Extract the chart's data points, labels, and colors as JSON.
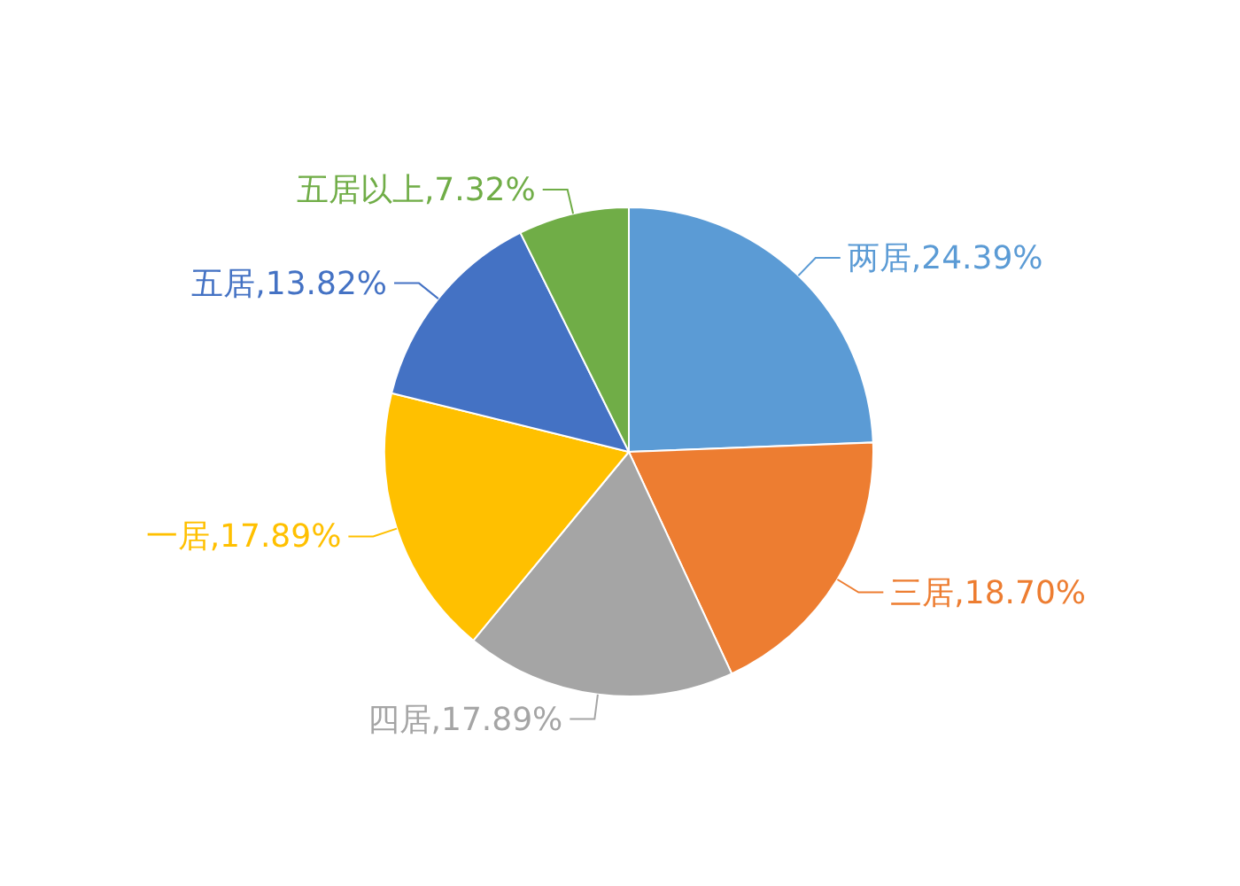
{
  "chart_data": {
    "type": "pie",
    "categories": [
      "两居",
      "三居",
      "四居",
      "一居",
      "五居",
      "五居以上"
    ],
    "values": [
      24.39,
      18.7,
      17.89,
      17.89,
      13.82,
      7.32
    ],
    "value_labels": [
      "24.39%",
      "18.70%",
      "17.89%",
      "17.89%",
      "13.82%",
      "7.32%"
    ],
    "colors": [
      "#5b9bd5",
      "#ed7d31",
      "#a5a5a5",
      "#ffc000",
      "#4472c4",
      "#70ad47"
    ],
    "legend": false
  }
}
